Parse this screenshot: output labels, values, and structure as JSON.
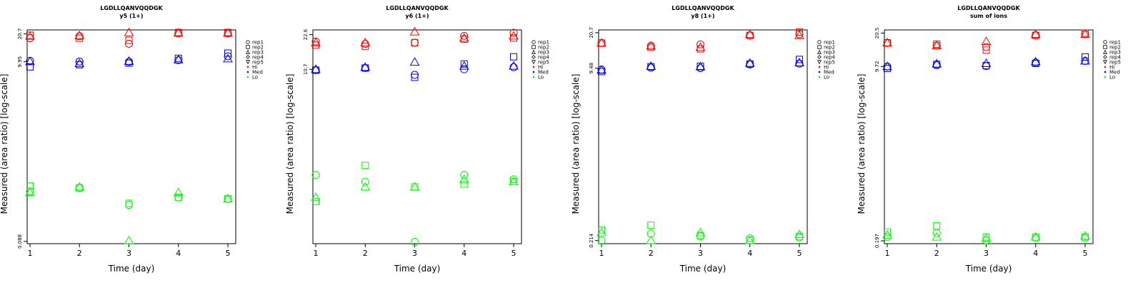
{
  "legend": {
    "reps": [
      "rep1",
      "rep2",
      "rep3",
      "rep4",
      "rep5"
    ],
    "levels": [
      "Hi",
      "Med",
      "Lo"
    ]
  },
  "colors": {
    "Hi": "#ff0000",
    "Med": "#0000ff",
    "Lo": "#00ff00"
  },
  "chart_data": [
    {
      "type": "scatter",
      "title": "LGDLLQANVQQDGK",
      "subtitle": "y5 (1+)",
      "xlabel": "Time (day)",
      "ylabel": "Measured (area ratio) [log-scale]",
      "x_ticks": [
        1,
        2,
        3,
        4,
        5
      ],
      "y_ticks": [
        "20.7",
        "9.95",
        "0.088"
      ],
      "y_ticks_values": [
        20.7,
        9.95,
        0.088
      ],
      "ylim": [
        0.083,
        23
      ],
      "log_y": true,
      "series": [
        {
          "level": "Hi",
          "rep": "rep1",
          "x": [
            1,
            2,
            3,
            4,
            5
          ],
          "y": [
            18.5,
            19.5,
            16.0,
            21.0,
            21.0
          ]
        },
        {
          "level": "Hi",
          "rep": "rep2",
          "x": [
            1,
            2,
            3,
            4,
            5
          ],
          "y": [
            20.0,
            18.5,
            17.5,
            21.5,
            21.5
          ]
        },
        {
          "level": "Hi",
          "rep": "rep3",
          "x": [
            1,
            2,
            3,
            4,
            5
          ],
          "y": [
            19.5,
            19.8,
            21.5,
            21.3,
            21.2
          ]
        },
        {
          "level": "Med",
          "rep": "rep1",
          "x": [
            1,
            2,
            3,
            4,
            5
          ],
          "y": [
            10.2,
            10.0,
            9.95,
            10.4,
            11.5
          ]
        },
        {
          "level": "Med",
          "rep": "rep2",
          "x": [
            1,
            2,
            3,
            4,
            5
          ],
          "y": [
            8.7,
            9.2,
            9.6,
            10.9,
            12.5
          ]
        },
        {
          "level": "Med",
          "rep": "rep3",
          "x": [
            1,
            2,
            3,
            4,
            5
          ],
          "y": [
            10.0,
            9.5,
            10.1,
            10.5,
            10.8
          ]
        },
        {
          "level": "Lo",
          "rep": "rep1",
          "x": [
            1,
            2,
            3,
            4,
            5
          ],
          "y": [
            0.33,
            0.36,
            0.23,
            0.28,
            0.27
          ]
        },
        {
          "level": "Lo",
          "rep": "rep2",
          "x": [
            1,
            2,
            3,
            4,
            5
          ],
          "y": [
            0.38,
            0.36,
            0.24,
            0.28,
            0.27
          ]
        },
        {
          "level": "Lo",
          "rep": "rep3",
          "x": [
            1,
            2,
            3,
            4,
            5
          ],
          "y": [
            0.32,
            0.37,
            0.09,
            0.32,
            0.27
          ]
        }
      ]
    },
    {
      "type": "scatter",
      "title": "LGDLLQANVQQDGK",
      "subtitle": "y6 (1+)",
      "xlabel": "Time (day)",
      "ylabel": "Measured (area ratio) [log-scale]",
      "x_ticks": [
        1,
        2,
        3,
        4,
        5
      ],
      "y_ticks": [
        "22.6",
        "10.7"
      ],
      "y_ticks_values": [
        22.6,
        10.7
      ],
      "ylim": [
        0.25,
        25
      ],
      "log_y": true,
      "series": [
        {
          "level": "Hi",
          "rep": "rep1",
          "x": [
            1,
            2,
            3,
            4,
            5
          ],
          "y": [
            19.5,
            18.5,
            19.0,
            22.0,
            23.5
          ]
        },
        {
          "level": "Hi",
          "rep": "rep2",
          "x": [
            1,
            2,
            3,
            4,
            5
          ],
          "y": [
            18.0,
            17.5,
            19.0,
            20.5,
            21.0
          ]
        },
        {
          "level": "Hi",
          "rep": "rep3",
          "x": [
            1,
            2,
            3,
            4,
            5
          ],
          "y": [
            19.0,
            19.0,
            24.0,
            21.0,
            22.0
          ]
        },
        {
          "level": "Med",
          "rep": "rep1",
          "x": [
            1,
            2,
            3,
            4,
            5
          ],
          "y": [
            10.5,
            11.0,
            9.5,
            10.7,
            11.2
          ]
        },
        {
          "level": "Med",
          "rep": "rep2",
          "x": [
            1,
            2,
            3,
            4,
            5
          ],
          "y": [
            10.5,
            11.0,
            9.0,
            12.0,
            14.0
          ]
        },
        {
          "level": "Med",
          "rep": "rep3",
          "x": [
            1,
            2,
            3,
            4,
            5
          ],
          "y": [
            10.7,
            11.2,
            12.5,
            11.5,
            11.5
          ]
        },
        {
          "level": "Lo",
          "rep": "rep1",
          "x": [
            1,
            2,
            3,
            4,
            5
          ],
          "y": [
            1.1,
            0.95,
            0.26,
            1.1,
            1.0
          ]
        },
        {
          "level": "Lo",
          "rep": "rep2",
          "x": [
            1,
            2,
            3,
            4,
            5
          ],
          "y": [
            0.62,
            1.35,
            0.85,
            0.9,
            0.95
          ]
        },
        {
          "level": "Lo",
          "rep": "rep3",
          "x": [
            1,
            2,
            3,
            4,
            5
          ],
          "y": [
            0.68,
            0.85,
            0.85,
            1.0,
            0.95
          ]
        }
      ]
    },
    {
      "type": "scatter",
      "title": "LGDLLQANVQQDGK",
      "subtitle": "y8 (1+)",
      "xlabel": "Time (day)",
      "ylabel": "Measured (area ratio) [log-scale]",
      "x_ticks": [
        1,
        2,
        3,
        4,
        5
      ],
      "y_ticks": [
        "20.7",
        "9.48",
        "0.214"
      ],
      "y_ticks_values": [
        20.7,
        9.48,
        0.214
      ],
      "ylim": [
        0.2,
        22
      ],
      "log_y": true,
      "series": [
        {
          "level": "Hi",
          "rep": "rep1",
          "x": [
            1,
            2,
            3,
            4,
            5
          ],
          "y": [
            16.5,
            15.5,
            16.0,
            19.5,
            20.0
          ]
        },
        {
          "level": "Hi",
          "rep": "rep2",
          "x": [
            1,
            2,
            3,
            4,
            5
          ],
          "y": [
            16.5,
            15.0,
            14.5,
            19.5,
            21.0
          ]
        },
        {
          "level": "Hi",
          "rep": "rep3",
          "x": [
            1,
            2,
            3,
            4,
            5
          ],
          "y": [
            16.5,
            15.5,
            15.0,
            20.0,
            19.5
          ]
        },
        {
          "level": "Med",
          "rep": "rep1",
          "x": [
            1,
            2,
            3,
            4,
            5
          ],
          "y": [
            9.2,
            9.6,
            9.5,
            10.3,
            10.5
          ]
        },
        {
          "level": "Med",
          "rep": "rep2",
          "x": [
            1,
            2,
            3,
            4,
            5
          ],
          "y": [
            8.8,
            9.8,
            9.9,
            10.4,
            11.5
          ]
        },
        {
          "level": "Med",
          "rep": "rep3",
          "x": [
            1,
            2,
            3,
            4,
            5
          ],
          "y": [
            9.1,
            9.9,
            9.8,
            10.6,
            10.7
          ]
        },
        {
          "level": "Lo",
          "rep": "rep1",
          "x": [
            1,
            2,
            3,
            4,
            5
          ],
          "y": [
            0.214,
            0.25,
            0.235,
            0.225,
            0.23
          ]
        },
        {
          "level": "Lo",
          "rep": "rep2",
          "x": [
            1,
            2,
            3,
            4,
            5
          ],
          "y": [
            0.27,
            0.3,
            0.24,
            0.215,
            0.235
          ]
        },
        {
          "level": "Lo",
          "rep": "rep3",
          "x": [
            1,
            2,
            3,
            4,
            5
          ],
          "y": [
            0.255,
            0.215,
            0.255,
            0.215,
            0.245
          ]
        }
      ]
    },
    {
      "type": "scatter",
      "title": "LGDLLQANVQQDGK",
      "subtitle": "sum of ions",
      "xlabel": "Time (day)",
      "ylabel": "Measured (area ratio) [log-scale]",
      "x_ticks": [
        1,
        2,
        3,
        4,
        5
      ],
      "y_ticks": [
        "20.5",
        "9.72",
        "0.197"
      ],
      "y_ticks_values": [
        20.5,
        9.72,
        0.197
      ],
      "ylim": [
        0.185,
        22
      ],
      "log_y": true,
      "series": [
        {
          "level": "Hi",
          "rep": "rep1",
          "x": [
            1,
            2,
            3,
            4,
            5
          ],
          "y": [
            16.5,
            15.5,
            15.0,
            19.5,
            20.0
          ]
        },
        {
          "level": "Hi",
          "rep": "rep2",
          "x": [
            1,
            2,
            3,
            4,
            5
          ],
          "y": [
            16.5,
            16.0,
            14.0,
            19.5,
            20.5
          ]
        },
        {
          "level": "Hi",
          "rep": "rep3",
          "x": [
            1,
            2,
            3,
            4,
            5
          ],
          "y": [
            16.5,
            15.5,
            17.0,
            20.0,
            20.0
          ]
        },
        {
          "level": "Med",
          "rep": "rep1",
          "x": [
            1,
            2,
            3,
            4,
            5
          ],
          "y": [
            9.7,
            10.0,
            9.8,
            10.6,
            11.0
          ]
        },
        {
          "level": "Med",
          "rep": "rep2",
          "x": [
            1,
            2,
            3,
            4,
            5
          ],
          "y": [
            9.3,
            10.2,
            9.9,
            10.4,
            12.0
          ]
        },
        {
          "level": "Med",
          "rep": "rep3",
          "x": [
            1,
            2,
            3,
            4,
            5
          ],
          "y": [
            9.7,
            10.3,
            10.4,
            10.8,
            11.0
          ]
        },
        {
          "level": "Lo",
          "rep": "rep1",
          "x": [
            1,
            2,
            3,
            4,
            5
          ],
          "y": [
            0.215,
            0.235,
            0.2,
            0.21,
            0.21
          ]
        },
        {
          "level": "Lo",
          "rep": "rep2",
          "x": [
            1,
            2,
            3,
            4,
            5
          ],
          "y": [
            0.24,
            0.275,
            0.215,
            0.215,
            0.215
          ]
        },
        {
          "level": "Lo",
          "rep": "rep3",
          "x": [
            1,
            2,
            3,
            4,
            5
          ],
          "y": [
            0.225,
            0.215,
            0.21,
            0.215,
            0.22
          ]
        }
      ]
    }
  ]
}
